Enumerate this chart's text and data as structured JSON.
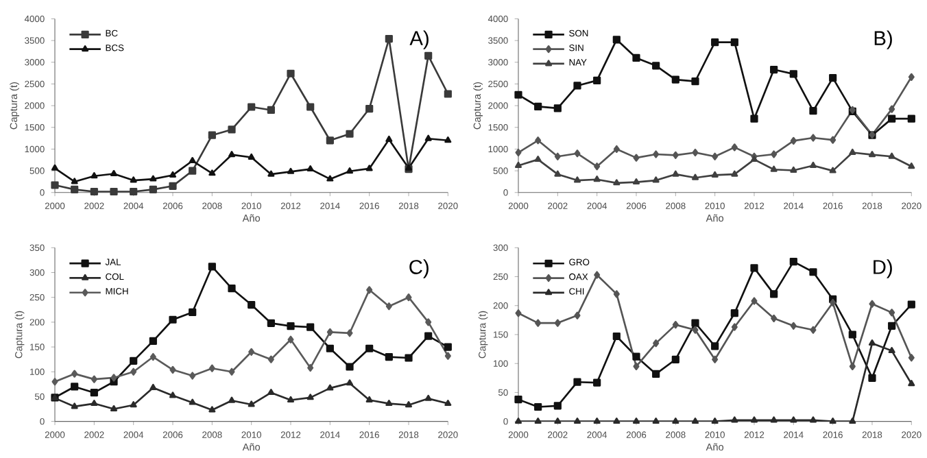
{
  "chart_data": [
    {
      "type": "line",
      "xlabel": "Año",
      "ylabel": "Captura (t)",
      "annotations": [
        "A)"
      ],
      "legend": "top left",
      "grid": false,
      "line_style": "solid",
      "x": [
        2000,
        2001,
        2002,
        2003,
        2004,
        2005,
        2006,
        2007,
        2008,
        2009,
        2010,
        2011,
        2012,
        2013,
        2014,
        2015,
        2016,
        2017,
        2018,
        2019,
        2020
      ],
      "xlim": [
        2000,
        2020
      ],
      "xticks": [
        2000,
        2002,
        2004,
        2006,
        2008,
        2010,
        2012,
        2014,
        2016,
        2018,
        2020
      ],
      "ylim": [
        0,
        4000
      ],
      "yticks": [
        0,
        500,
        1000,
        1500,
        2000,
        2500,
        3000,
        3500,
        4000
      ],
      "series": [
        {
          "name": "BC",
          "color": "#3a3a3a",
          "marker": "square",
          "values": [
            170,
            70,
            20,
            20,
            20,
            70,
            150,
            500,
            1320,
            1450,
            1970,
            1900,
            2740,
            1970,
            1200,
            1350,
            1930,
            3540,
            540,
            3150,
            2270
          ]
        },
        {
          "name": "BCS",
          "color": "#111111",
          "marker": "triangle",
          "values": [
            560,
            250,
            380,
            430,
            280,
            310,
            400,
            730,
            440,
            870,
            810,
            420,
            480,
            540,
            310,
            490,
            550,
            1220,
            560,
            1240,
            1200
          ]
        }
      ]
    },
    {
      "type": "line",
      "xlabel": "Año",
      "ylabel": "Captura (t)",
      "annotations": [
        "B)"
      ],
      "legend": "top left",
      "grid": false,
      "line_style": "solid",
      "x": [
        2000,
        2001,
        2002,
        2003,
        2004,
        2005,
        2006,
        2007,
        2008,
        2009,
        2010,
        2011,
        2012,
        2013,
        2014,
        2015,
        2016,
        2017,
        2018,
        2019,
        2020
      ],
      "xlim": [
        2000,
        2020
      ],
      "xticks": [
        2000,
        2002,
        2004,
        2006,
        2008,
        2010,
        2012,
        2014,
        2016,
        2018,
        2020
      ],
      "ylim": [
        0,
        4000
      ],
      "yticks": [
        0,
        500,
        1000,
        1500,
        2000,
        2500,
        3000,
        3500,
        4000
      ],
      "series": [
        {
          "name": "SON",
          "color": "#111111",
          "marker": "square",
          "values": [
            2250,
            1980,
            1940,
            2460,
            2580,
            3520,
            3100,
            2920,
            2600,
            2560,
            3460,
            3460,
            1700,
            2830,
            2730,
            1880,
            2640,
            1870,
            1320,
            1700,
            1700
          ]
        },
        {
          "name": "SIN",
          "color": "#555555",
          "marker": "diamond",
          "values": [
            920,
            1200,
            830,
            900,
            600,
            1000,
            800,
            880,
            860,
            920,
            830,
            1040,
            830,
            880,
            1190,
            1260,
            1210,
            1900,
            1330,
            1920,
            2660
          ]
        },
        {
          "name": "NAY",
          "color": "#404040",
          "marker": "triangle",
          "values": [
            620,
            760,
            420,
            280,
            300,
            220,
            240,
            280,
            420,
            340,
            400,
            420,
            760,
            530,
            510,
            620,
            500,
            920,
            870,
            830,
            600
          ]
        }
      ]
    },
    {
      "type": "line",
      "xlabel": "Año",
      "ylabel": "Captura (t)",
      "annotations": [
        "C)"
      ],
      "legend": "top left",
      "grid": false,
      "line_style": "solid",
      "x": [
        2000,
        2001,
        2002,
        2003,
        2004,
        2005,
        2006,
        2007,
        2008,
        2009,
        2010,
        2011,
        2012,
        2013,
        2014,
        2015,
        2016,
        2017,
        2018,
        2019,
        2020
      ],
      "xlim": [
        2000,
        2020
      ],
      "xticks": [
        2000,
        2002,
        2004,
        2006,
        2008,
        2010,
        2012,
        2014,
        2016,
        2018,
        2020
      ],
      "ylim": [
        0,
        350
      ],
      "yticks": [
        0,
        50,
        100,
        150,
        200,
        250,
        300,
        350
      ],
      "series": [
        {
          "name": "JAL",
          "color": "#111111",
          "marker": "square",
          "values": [
            48,
            70,
            58,
            80,
            122,
            162,
            205,
            220,
            312,
            268,
            235,
            198,
            192,
            190,
            147,
            110,
            147,
            130,
            128,
            172,
            150
          ]
        },
        {
          "name": "COL",
          "color": "#2a2a2a",
          "marker": "triangle",
          "values": [
            47,
            30,
            36,
            25,
            33,
            68,
            52,
            38,
            23,
            42,
            34,
            58,
            43,
            48,
            67,
            77,
            43,
            36,
            33,
            46,
            36
          ]
        },
        {
          "name": "MICH",
          "color": "#5a5a5a",
          "marker": "diamond",
          "values": [
            80,
            96,
            85,
            88,
            100,
            130,
            104,
            92,
            107,
            100,
            140,
            125,
            165,
            108,
            180,
            178,
            265,
            232,
            250,
            200,
            132
          ]
        }
      ]
    },
    {
      "type": "line",
      "xlabel": "Año",
      "ylabel": "Captura (t)",
      "annotations": [
        "D)"
      ],
      "legend": "top left",
      "grid": false,
      "line_style": "solid",
      "x": [
        2000,
        2001,
        2002,
        2003,
        2004,
        2005,
        2006,
        2007,
        2008,
        2009,
        2010,
        2011,
        2012,
        2013,
        2014,
        2015,
        2016,
        2017,
        2018,
        2019,
        2020
      ],
      "xlim": [
        2000,
        2020
      ],
      "xticks": [
        2000,
        2002,
        2004,
        2006,
        2008,
        2010,
        2012,
        2014,
        2016,
        2018,
        2020
      ],
      "ylim": [
        0,
        300
      ],
      "yticks": [
        0,
        50,
        100,
        150,
        200,
        250,
        300
      ],
      "series": [
        {
          "name": "GRO",
          "color": "#111111",
          "marker": "square",
          "values": [
            38,
            25,
            27,
            68,
            67,
            147,
            112,
            82,
            107,
            170,
            130,
            187,
            265,
            220,
            276,
            258,
            211,
            150,
            75,
            165,
            202
          ]
        },
        {
          "name": "OAX",
          "color": "#555555",
          "marker": "diamond",
          "values": [
            187,
            170,
            170,
            183,
            253,
            220,
            95,
            135,
            167,
            158,
            107,
            163,
            208,
            178,
            165,
            158,
            205,
            95,
            203,
            188,
            110
          ]
        },
        {
          "name": "CHI",
          "color": "#2a2a2a",
          "marker": "triangle",
          "values": [
            0,
            0,
            0,
            0,
            0,
            0,
            0,
            0,
            0,
            0,
            0,
            2,
            2,
            2,
            2,
            2,
            0,
            0,
            135,
            122,
            65
          ]
        }
      ]
    }
  ]
}
